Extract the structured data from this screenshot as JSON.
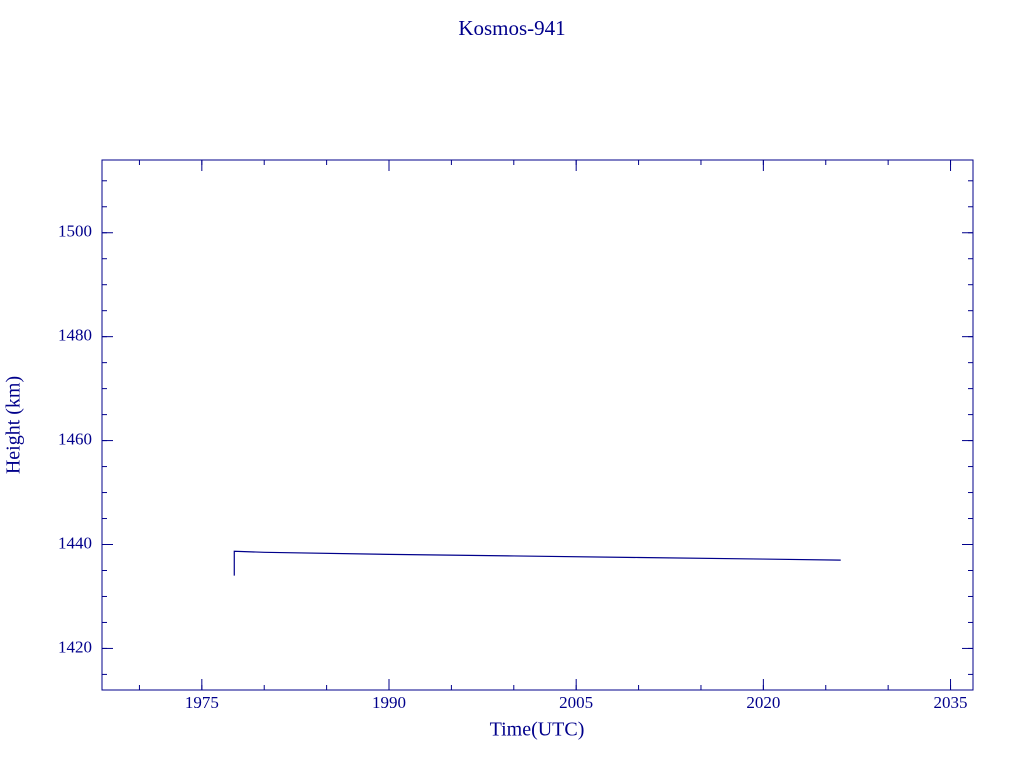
{
  "chart_data": {
    "type": "line",
    "title": "Kosmos-941",
    "x_label": "Time(UTC)",
    "y_label": "Height (km)",
    "x": [
      1977.6,
      1977.6,
      1980,
      1990,
      2000,
      2010,
      2020,
      2026.2
    ],
    "series": [
      {
        "name": "Kosmos-941",
        "color": "#00008b",
        "values": [
          1434.0,
          1438.7,
          1438.5,
          1438.1,
          1437.8,
          1437.5,
          1437.2,
          1437.0
        ]
      }
    ],
    "xlim": [
      1967,
      2036.8
    ],
    "xticks": [
      1975,
      1990,
      2005,
      2020,
      2035
    ],
    "ylim": [
      1412,
      1514
    ],
    "yticks": [
      1420,
      1440,
      1460,
      1480,
      1500
    ],
    "legend": false,
    "grid": false
  }
}
